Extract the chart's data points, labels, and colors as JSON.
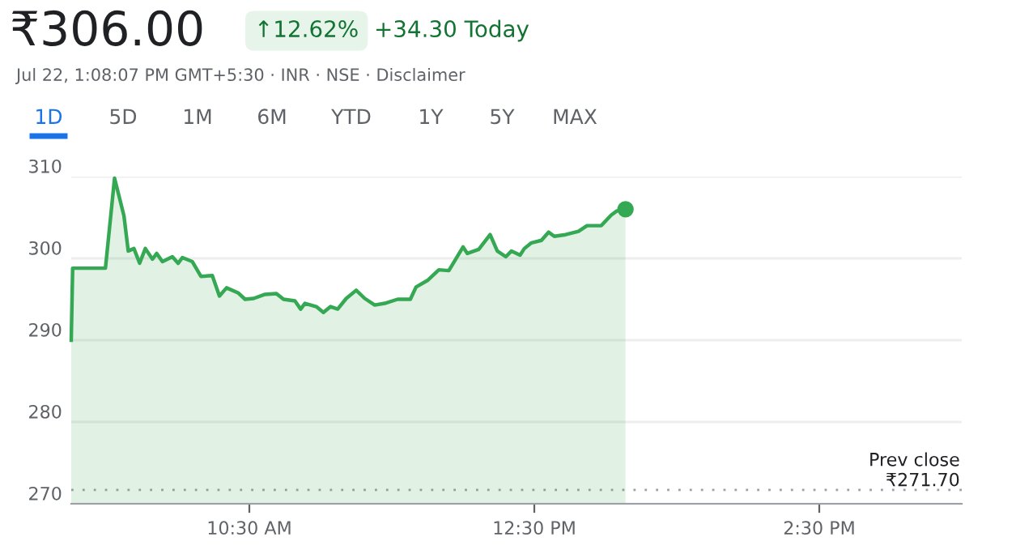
{
  "chart_data": {
    "type": "area",
    "title": "₹306.00",
    "annotations": [
      "↑12.62%",
      "+34.30 Today",
      "Jul 22, 1:08:07 PM GMT+5:30 · INR · NSE · Disclaimer",
      "1D",
      "5D",
      "1M",
      "6M",
      "YTD",
      "1Y",
      "5Y",
      "MAX"
    ],
    "series": [
      {
        "color": "#34a853",
        "x": [
          9.25,
          9.26,
          9.49,
          9.554,
          9.62,
          9.65,
          9.69,
          9.73,
          9.77,
          9.82,
          9.85,
          9.89,
          9.96,
          10.0,
          10.03,
          10.1,
          10.16,
          10.24,
          10.29,
          10.34,
          10.42,
          10.47,
          10.53,
          10.61,
          10.69,
          10.74,
          10.82,
          10.86,
          10.89,
          10.97,
          11.02,
          11.07,
          11.12,
          11.18,
          11.25,
          11.31,
          11.38,
          11.45,
          11.54,
          11.63,
          11.67,
          11.75,
          11.83,
          11.9,
          12.0,
          12.03,
          12.11,
          12.19,
          12.24,
          12.3,
          12.34,
          12.4,
          12.43,
          12.48,
          12.55,
          12.6,
          12.64,
          12.72,
          12.81,
          12.87,
          12.97,
          13.04,
          13.08,
          13.14
        ],
        "values": [
          290,
          298.8,
          298.8,
          309.8,
          305.2,
          300.9,
          301.2,
          299.4,
          301.2,
          299.9,
          300.6,
          299.6,
          300.2,
          299.4,
          300.1,
          299.6,
          297.8,
          297.9,
          295.4,
          296.4,
          295.8,
          295.0,
          295.1,
          295.6,
          295.7,
          295.0,
          294.8,
          293.8,
          294.5,
          294.1,
          293.4,
          294.1,
          293.8,
          295.1,
          296.1,
          295.1,
          294.3,
          294.5,
          295.0,
          295.0,
          296.5,
          297.3,
          298.6,
          298.5,
          301.4,
          300.6,
          301.1,
          302.9,
          300.9,
          300.2,
          300.9,
          300.4,
          301.2,
          301.9,
          302.2,
          303.2,
          302.7,
          302.9,
          303.3,
          304.0,
          304.0,
          305.3,
          305.8,
          306.0
        ]
      }
    ],
    "xlim": [
      9.25,
      15.5
    ],
    "xticks": [
      {
        "value": 10.5,
        "label": "10:30 AM"
      },
      {
        "value": 12.5,
        "label": "12:30 PM"
      },
      {
        "value": 14.5,
        "label": "2:30 PM"
      }
    ],
    "ylim": [
      270,
      310
    ],
    "yticks": [
      270,
      280,
      290,
      300,
      310
    ],
    "grid": "y",
    "ref_lines": [
      {
        "axis": "y",
        "value": 271.7,
        "label": "Prev close\n₹271.70",
        "color": "#9aa0a6",
        "line_style": "dotted"
      }
    ]
  }
}
